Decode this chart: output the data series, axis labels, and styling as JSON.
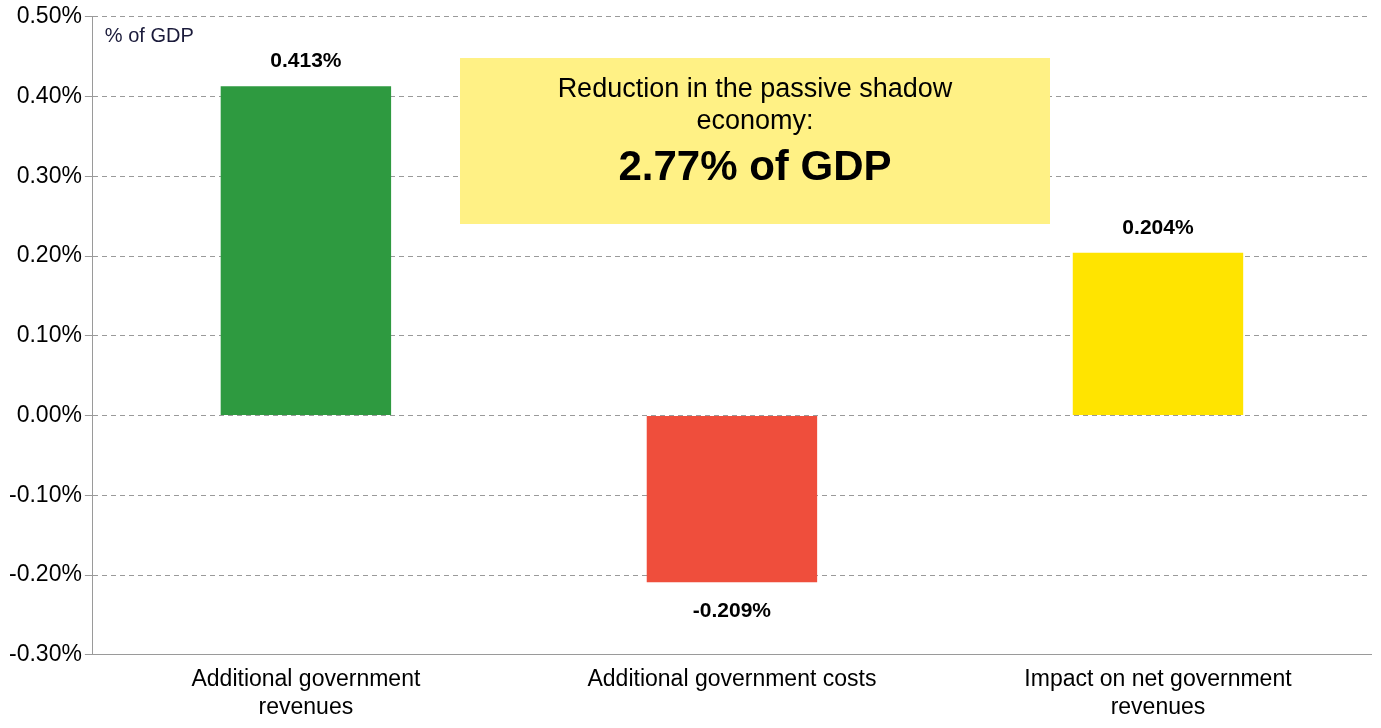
{
  "chart_data": {
    "type": "bar",
    "ylabel": "% of GDP",
    "categories": [
      "Additional government revenues",
      "Additional government costs",
      "Impact on net government revenues"
    ],
    "values": [
      0.413,
      -0.209,
      0.204
    ],
    "colors": [
      "#2e9a40",
      "#ef4e3c",
      "#ffe400"
    ],
    "value_labels": [
      "0.413%",
      "-0.209%",
      "0.204%"
    ],
    "ylim": [
      -0.3,
      0.5
    ],
    "yticks": [
      {
        "value": -0.3,
        "label": "-0.30%"
      },
      {
        "value": -0.2,
        "label": "-0.20%"
      },
      {
        "value": -0.1,
        "label": "-0.10%"
      },
      {
        "value": 0,
        "label": "0.00%"
      },
      {
        "value": 0.1,
        "label": "0.10%"
      },
      {
        "value": 0.2,
        "label": "0.20%"
      },
      {
        "value": 0.3,
        "label": "0.30%"
      },
      {
        "value": 0.4,
        "label": "0.40%"
      },
      {
        "value": 0.5,
        "label": "0.50%"
      }
    ],
    "grid": "y",
    "legend": false,
    "annotations": [
      "Reduction in the passive shadow economy:",
      "2.77% of GDP"
    ]
  }
}
